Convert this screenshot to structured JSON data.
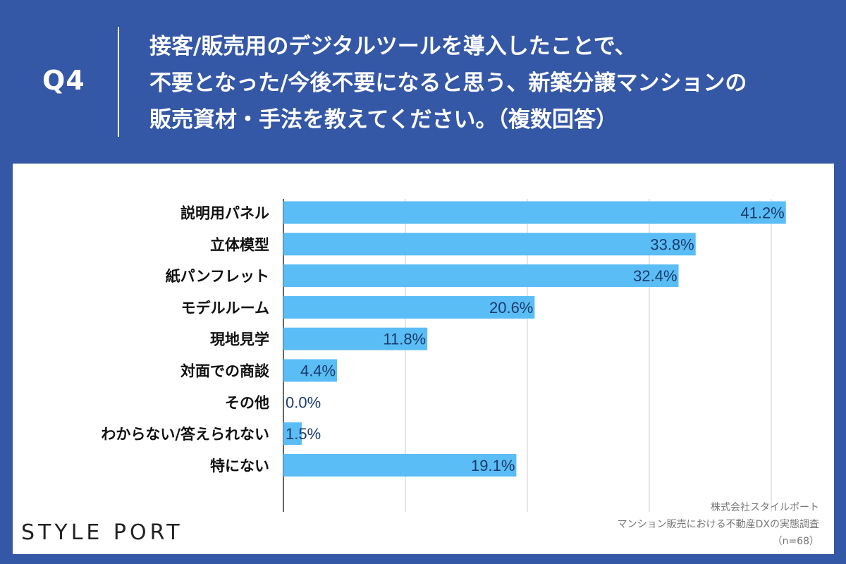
{
  "header": {
    "q_label": "Q4",
    "question_lines": [
      "接客/販売用のデジタルツールを導入したことで、",
      "不要となった/今後不要になると思う、新築分譲マンションの",
      "販売資材・手法を教えてください。（複数回答）"
    ]
  },
  "colors": {
    "background": "#3457a6",
    "bar": "#5bbdf5",
    "value_label": "#1a3a6b",
    "grid": "#cccccc"
  },
  "chart_data": {
    "type": "bar",
    "orientation": "horizontal",
    "categories": [
      "説明用パネル",
      "立体模型",
      "紙パンフレット",
      "モデルルーム",
      "現地見学",
      "対面での商談",
      "その他",
      "わからない/答えられない",
      "特にない"
    ],
    "values": [
      41.2,
      33.8,
      32.4,
      20.6,
      11.8,
      4.4,
      0.0,
      1.5,
      19.1
    ],
    "value_labels": [
      "41.2%",
      "33.8%",
      "32.4%",
      "20.6%",
      "11.8%",
      "4.4%",
      "0.0%",
      "1.5%",
      "19.1%"
    ],
    "xlim": [
      0,
      50
    ],
    "grid": true,
    "title": "",
    "xlabel": "",
    "ylabel": ""
  },
  "footer": {
    "logo": "STYLE PORT",
    "source_lines": [
      "株式会社スタイルポート",
      "マンション販売における不動産DXの実態調査",
      "（n=68）"
    ]
  }
}
